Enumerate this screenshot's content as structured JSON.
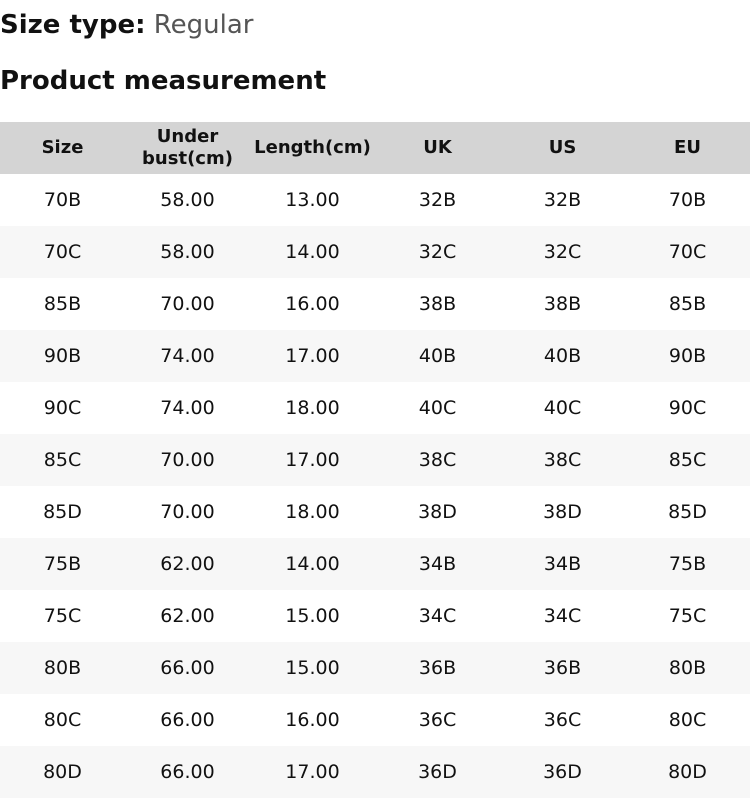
{
  "size_type": {
    "label": "Size type:",
    "value": "Regular"
  },
  "section_title": "Product measurement",
  "table": {
    "headers": [
      "Size",
      "Under bust(cm)",
      "Length(cm)",
      "UK",
      "US",
      "EU"
    ],
    "rows": [
      [
        "70B",
        "58.00",
        "13.00",
        "32B",
        "32B",
        "70B"
      ],
      [
        "70C",
        "58.00",
        "14.00",
        "32C",
        "32C",
        "70C"
      ],
      [
        "85B",
        "70.00",
        "16.00",
        "38B",
        "38B",
        "85B"
      ],
      [
        "90B",
        "74.00",
        "17.00",
        "40B",
        "40B",
        "90B"
      ],
      [
        "90C",
        "74.00",
        "18.00",
        "40C",
        "40C",
        "90C"
      ],
      [
        "85C",
        "70.00",
        "17.00",
        "38C",
        "38C",
        "85C"
      ],
      [
        "85D",
        "70.00",
        "18.00",
        "38D",
        "38D",
        "85D"
      ],
      [
        "75B",
        "62.00",
        "14.00",
        "34B",
        "34B",
        "75B"
      ],
      [
        "75C",
        "62.00",
        "15.00",
        "34C",
        "34C",
        "75C"
      ],
      [
        "80B",
        "66.00",
        "15.00",
        "36B",
        "36B",
        "80B"
      ],
      [
        "80C",
        "66.00",
        "16.00",
        "36C",
        "36C",
        "80C"
      ],
      [
        "80D",
        "66.00",
        "17.00",
        "36D",
        "36D",
        "80D"
      ]
    ]
  },
  "colors": {
    "header_bg": "#d4d4d4",
    "alt_row_bg": "#f7f7f7"
  }
}
